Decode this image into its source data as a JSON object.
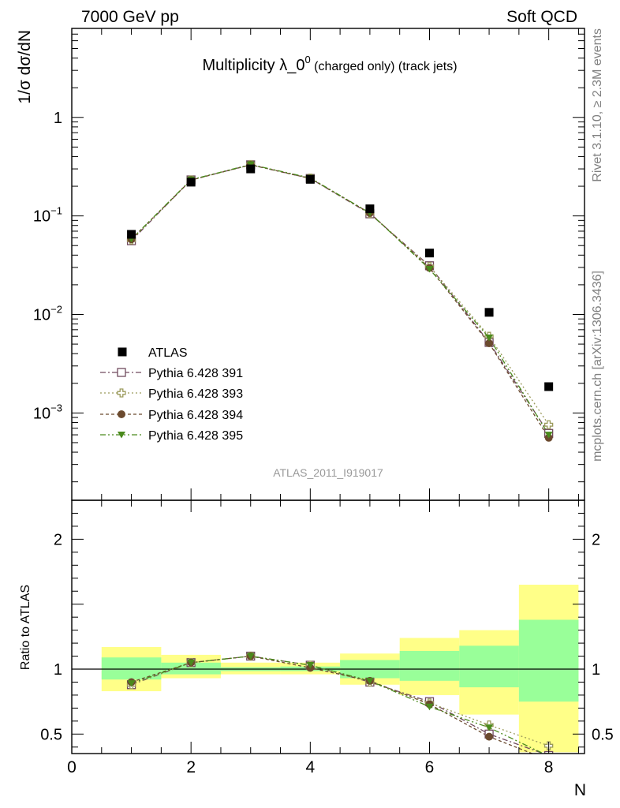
{
  "header": {
    "left": "7000 GeV pp",
    "right": "Soft QCD"
  },
  "side_text": {
    "upper": "Rivet 3.1.10, ≥ 2.3M events",
    "lower": "mcplots.cern.ch [arXiv:1306.3436]"
  },
  "chart_data": {
    "type": "scatter",
    "title": {
      "main": "Multiplicity λ_0",
      "sup": "0",
      "small": " (charged only) (track jets)"
    },
    "reference_label": "ATLAS_2011_I919017",
    "xlabel": "N",
    "ylabel": "1/σ dσ/dN",
    "ratio_ylabel": "Ratio to ATLAS",
    "xlim": [
      0,
      8.6
    ],
    "ylim": [
      0.00013,
      8
    ],
    "yscale": "log",
    "ratio_ylim": [
      0.35,
      2.3
    ],
    "x_ticks": [
      {
        "v": 0,
        "label": "0"
      },
      {
        "v": 2,
        "label": "2"
      },
      {
        "v": 4,
        "label": "4"
      },
      {
        "v": 6,
        "label": "6"
      },
      {
        "v": 8,
        "label": "8"
      }
    ],
    "y_ticks": [
      {
        "v": 1,
        "base": "1",
        "exp": ""
      },
      {
        "v": 0.1,
        "base": "10",
        "exp": "−1"
      },
      {
        "v": 0.01,
        "base": "10",
        "exp": "−2"
      },
      {
        "v": 0.001,
        "base": "10",
        "exp": "−3"
      }
    ],
    "ratio_ticks": [
      {
        "v": 0.5,
        "label": "0.5"
      },
      {
        "v": 1,
        "label": "1"
      },
      {
        "v": 2,
        "label": "2"
      }
    ],
    "legend_position": "lower-left",
    "data": {
      "name": "ATLAS",
      "color": "#000000",
      "x": [
        1,
        2,
        3,
        4,
        5,
        6,
        7,
        8
      ],
      "y": [
        0.065,
        0.22,
        0.3,
        0.235,
        0.118,
        0.042,
        0.0105,
        0.00185
      ]
    },
    "bands": {
      "x_low": [
        0.5,
        1.5,
        2.5,
        3.5,
        4.5,
        5.5,
        6.5,
        7.5
      ],
      "x_high": [
        1.5,
        2.5,
        3.5,
        4.5,
        5.5,
        6.5,
        7.5,
        8.5
      ],
      "inner_low": [
        0.92,
        0.96,
        0.985,
        0.985,
        0.93,
        0.91,
        0.86,
        0.75
      ],
      "inner_high": [
        1.09,
        1.05,
        1.015,
        1.02,
        1.07,
        1.14,
        1.18,
        1.38
      ],
      "outer_low": [
        0.83,
        0.93,
        0.96,
        0.96,
        0.88,
        0.8,
        0.65,
        0.36
      ],
      "outer_high": [
        1.17,
        1.11,
        1.05,
        1.05,
        1.12,
        1.24,
        1.3,
        1.65
      ],
      "inner_color": "#99ff99",
      "outer_color": "#ffff88"
    },
    "series": [
      {
        "name": "Pythia 6.428 391",
        "color": "#704a5e",
        "marker": "open-square",
        "dash": "7,3,2,3",
        "x": [
          1,
          2,
          3,
          4,
          5,
          6,
          7,
          8
        ],
        "y": [
          0.056,
          0.232,
          0.33,
          0.24,
          0.105,
          0.0312,
          0.0052,
          0.00062
        ],
        "ratio": [
          0.88,
          1.05,
          1.1,
          1.03,
          0.9,
          0.75,
          0.5,
          0.335
        ]
      },
      {
        "name": "Pythia 6.428 393",
        "color": "#9b9a5b",
        "marker": "open-cross",
        "dash": "2,3",
        "x": [
          1,
          2,
          3,
          4,
          5,
          6,
          7,
          8
        ],
        "y": [
          0.057,
          0.232,
          0.332,
          0.242,
          0.106,
          0.0307,
          0.006,
          0.00076
        ],
        "ratio": [
          0.88,
          1.05,
          1.1,
          1.03,
          0.9,
          0.74,
          0.57,
          0.41
        ]
      },
      {
        "name": "Pythia 6.428 394",
        "color": "#6b4a2e",
        "marker": "filled-circle",
        "dash": "4,3",
        "x": [
          1,
          2,
          3,
          4,
          5,
          6,
          7,
          8
        ],
        "y": [
          0.058,
          0.231,
          0.33,
          0.24,
          0.107,
          0.0296,
          0.0051,
          0.00056
        ],
        "ratio": [
          0.9,
          1.05,
          1.1,
          1.01,
          0.91,
          0.73,
          0.48,
          0.3
        ]
      },
      {
        "name": "Pythia 6.428 395",
        "color": "#4a8a1c",
        "marker": "filled-triangle-down",
        "dash": "7,3,2,3,2,3",
        "x": [
          1,
          2,
          3,
          4,
          5,
          6,
          7,
          8
        ],
        "y": [
          0.058,
          0.233,
          0.332,
          0.243,
          0.107,
          0.0289,
          0.0058,
          0.0006
        ],
        "ratio": [
          0.89,
          1.05,
          1.1,
          1.03,
          0.91,
          0.71,
          0.55,
          0.33
        ]
      }
    ]
  }
}
